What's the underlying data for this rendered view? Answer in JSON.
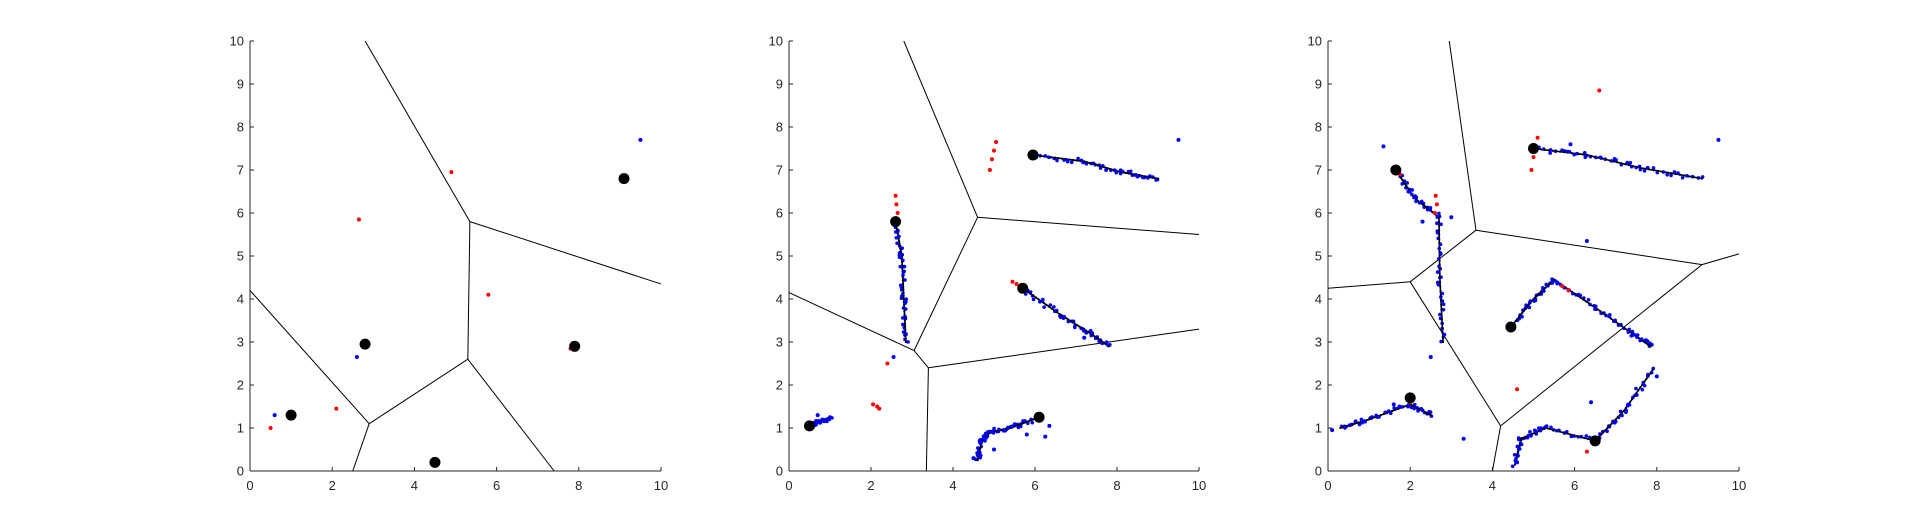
{
  "colors": {
    "background": "#ffffff",
    "axis": "#262626",
    "voronoi": "#000000",
    "red": "#ff0000",
    "blue": "#0000ff",
    "black": "#000000"
  },
  "chart_data": [
    {
      "type": "scatter",
      "title": "",
      "xlabel": "",
      "ylabel": "",
      "xlim": [
        0,
        10
      ],
      "ylim": [
        0,
        10
      ],
      "xticks": [
        "0",
        "2",
        "4",
        "6",
        "8",
        "10"
      ],
      "yticks": [
        "0",
        "1",
        "2",
        "3",
        "4",
        "5",
        "6",
        "7",
        "8",
        "9",
        "10"
      ],
      "grid": false,
      "voronoi_edges": [
        [
          [
            2.8,
            10
          ],
          [
            5.35,
            5.8
          ]
        ],
        [
          [
            5.35,
            5.8
          ],
          [
            10,
            4.35
          ]
        ],
        [
          [
            5.35,
            5.8
          ],
          [
            5.3,
            2.6
          ]
        ],
        [
          [
            5.3,
            2.6
          ],
          [
            2.9,
            1.1
          ]
        ],
        [
          [
            5.3,
            2.6
          ],
          [
            7.4,
            0
          ]
        ],
        [
          [
            2.9,
            1.1
          ],
          [
            0,
            4.2
          ]
        ],
        [
          [
            2.9,
            1.1
          ],
          [
            2.5,
            0
          ]
        ]
      ],
      "red_points": [
        [
          0.5,
          1.0
        ],
        [
          2.1,
          1.45
        ],
        [
          2.65,
          5.85
        ],
        [
          4.9,
          6.95
        ],
        [
          5.8,
          4.1
        ],
        [
          7.8,
          2.85
        ]
      ],
      "blue_points": [
        [
          0.6,
          1.3
        ],
        [
          2.6,
          2.65
        ],
        [
          9.5,
          7.7
        ],
        [
          7.9,
          2.9
        ]
      ],
      "black_points": [
        [
          1.0,
          1.3
        ],
        [
          2.8,
          2.95
        ],
        [
          4.5,
          0.2
        ],
        [
          7.9,
          2.9
        ],
        [
          9.1,
          6.8
        ]
      ],
      "trajectories": []
    },
    {
      "type": "scatter",
      "title": "",
      "xlabel": "",
      "ylabel": "",
      "xlim": [
        0,
        10
      ],
      "ylim": [
        0,
        10
      ],
      "xticks": [
        "0",
        "2",
        "4",
        "6",
        "8",
        "10"
      ],
      "yticks": [
        "0",
        "1",
        "2",
        "3",
        "4",
        "5",
        "6",
        "7",
        "8",
        "9",
        "10"
      ],
      "grid": false,
      "voronoi_edges": [
        [
          [
            2.8,
            10
          ],
          [
            4.6,
            5.9
          ]
        ],
        [
          [
            4.6,
            5.9
          ],
          [
            10,
            5.5
          ]
        ],
        [
          [
            4.6,
            5.9
          ],
          [
            3.05,
            2.8
          ]
        ],
        [
          [
            3.05,
            2.8
          ],
          [
            0,
            4.15
          ]
        ],
        [
          [
            3.05,
            2.8
          ],
          [
            3.4,
            2.4
          ]
        ],
        [
          [
            3.4,
            2.4
          ],
          [
            10,
            3.3
          ]
        ],
        [
          [
            3.4,
            2.4
          ],
          [
            3.35,
            0
          ]
        ]
      ],
      "red_points": [
        [
          4.9,
          7.0
        ],
        [
          4.95,
          7.25
        ],
        [
          5.0,
          7.45
        ],
        [
          5.05,
          7.65
        ],
        [
          2.65,
          6.0
        ],
        [
          2.62,
          6.2
        ],
        [
          2.6,
          6.4
        ],
        [
          5.45,
          4.4
        ],
        [
          5.55,
          4.35
        ],
        [
          2.05,
          1.55
        ],
        [
          2.15,
          1.5
        ],
        [
          2.2,
          1.45
        ],
        [
          2.4,
          2.5
        ]
      ],
      "blue_points": [
        [
          9.5,
          7.7
        ],
        [
          4.5,
          0.3
        ],
        [
          4.65,
          0.7
        ],
        [
          5.8,
          0.85
        ],
        [
          6.35,
          1.05
        ],
        [
          6.25,
          0.8
        ],
        [
          2.55,
          2.65
        ],
        [
          0.7,
          1.3
        ],
        [
          1.0,
          1.25
        ],
        [
          8.5,
          6.85
        ],
        [
          7.2,
          3.1
        ],
        [
          5.0,
          0.5
        ]
      ],
      "black_points": [
        [
          5.95,
          7.35
        ],
        [
          2.6,
          5.8
        ],
        [
          5.7,
          4.25
        ],
        [
          0.5,
          1.05
        ],
        [
          6.1,
          1.25
        ]
      ],
      "trajectories": [
        [
          [
            5.95,
            7.35
          ],
          [
            7.2,
            7.2
          ],
          [
            8.1,
            6.95
          ],
          [
            9.0,
            6.8
          ]
        ],
        [
          [
            2.6,
            5.8
          ],
          [
            2.75,
            5.0
          ],
          [
            2.8,
            4.0
          ],
          [
            2.85,
            3.0
          ]
        ],
        [
          [
            5.7,
            4.25
          ],
          [
            6.6,
            3.65
          ],
          [
            7.35,
            3.2
          ],
          [
            7.8,
            2.9
          ]
        ],
        [
          [
            0.5,
            1.05
          ],
          [
            0.75,
            1.15
          ],
          [
            1.0,
            1.25
          ]
        ],
        [
          [
            6.1,
            1.25
          ],
          [
            5.4,
            1.0
          ],
          [
            4.9,
            0.9
          ],
          [
            4.7,
            0.7
          ],
          [
            4.6,
            0.25
          ]
        ]
      ]
    },
    {
      "type": "scatter",
      "title": "",
      "xlabel": "",
      "ylabel": "",
      "xlim": [
        0,
        10
      ],
      "ylim": [
        0,
        10
      ],
      "xticks": [
        "0",
        "2",
        "4",
        "6",
        "8",
        "10"
      ],
      "yticks": [
        "0",
        "1",
        "2",
        "3",
        "4",
        "5",
        "6",
        "7",
        "8",
        "9",
        "10"
      ],
      "grid": false,
      "voronoi_edges": [
        [
          [
            2.95,
            10
          ],
          [
            3.6,
            5.6
          ]
        ],
        [
          [
            3.6,
            5.6
          ],
          [
            9.1,
            4.8
          ]
        ],
        [
          [
            9.1,
            4.8
          ],
          [
            10,
            5.05
          ]
        ],
        [
          [
            3.6,
            5.6
          ],
          [
            2.0,
            4.4
          ]
        ],
        [
          [
            2.0,
            4.4
          ],
          [
            0,
            4.25
          ]
        ],
        [
          [
            2.0,
            4.4
          ],
          [
            4.2,
            1.05
          ]
        ],
        [
          [
            4.2,
            1.05
          ],
          [
            9.1,
            4.8
          ]
        ],
        [
          [
            4.2,
            1.05
          ],
          [
            4.0,
            0
          ]
        ]
      ],
      "red_points": [
        [
          6.6,
          8.85
        ],
        [
          4.95,
          7.0
        ],
        [
          5.0,
          7.3
        ],
        [
          5.05,
          7.55
        ],
        [
          5.1,
          7.75
        ],
        [
          2.6,
          6.0
        ],
        [
          2.65,
          6.2
        ],
        [
          2.62,
          6.4
        ],
        [
          5.7,
          4.3
        ],
        [
          5.85,
          4.2
        ],
        [
          4.6,
          1.9
        ],
        [
          6.3,
          0.45
        ],
        [
          2.0,
          1.6
        ],
        [
          1.75,
          6.9
        ]
      ],
      "blue_points": [
        [
          9.5,
          7.7
        ],
        [
          1.35,
          7.55
        ],
        [
          6.3,
          5.35
        ],
        [
          3.3,
          0.75
        ],
        [
          2.5,
          2.65
        ],
        [
          1.6,
          1.55
        ],
        [
          0.1,
          0.95
        ],
        [
          6.4,
          1.6
        ],
        [
          5.9,
          7.6
        ],
        [
          3.0,
          5.9
        ],
        [
          2.3,
          5.8
        ],
        [
          4.6,
          0.2
        ],
        [
          8.0,
          2.2
        ]
      ],
      "black_points": [
        [
          5.0,
          7.5
        ],
        [
          1.65,
          7.0
        ],
        [
          4.45,
          3.35
        ],
        [
          2.0,
          1.7
        ],
        [
          6.5,
          0.7
        ]
      ],
      "trajectories": [
        [
          [
            5.0,
            7.5
          ],
          [
            6.3,
            7.35
          ],
          [
            7.6,
            7.05
          ],
          [
            9.1,
            6.8
          ]
        ],
        [
          [
            1.65,
            7.0
          ],
          [
            2.1,
            6.35
          ],
          [
            2.7,
            5.9
          ],
          [
            2.72,
            4.5
          ],
          [
            2.8,
            3.0
          ]
        ],
        [
          [
            4.45,
            3.35
          ],
          [
            5.0,
            4.0
          ],
          [
            5.5,
            4.45
          ],
          [
            6.5,
            3.8
          ],
          [
            7.4,
            3.2
          ],
          [
            7.85,
            2.9
          ]
        ],
        [
          [
            0.3,
            1.0
          ],
          [
            1.0,
            1.2
          ],
          [
            2.0,
            1.55
          ],
          [
            2.5,
            1.3
          ]
        ],
        [
          [
            6.5,
            0.7
          ],
          [
            7.2,
            1.4
          ],
          [
            7.9,
            2.35
          ]
        ],
        [
          [
            6.5,
            0.7
          ],
          [
            5.3,
            1.0
          ],
          [
            4.7,
            0.75
          ],
          [
            4.55,
            0.15
          ]
        ]
      ]
    }
  ]
}
